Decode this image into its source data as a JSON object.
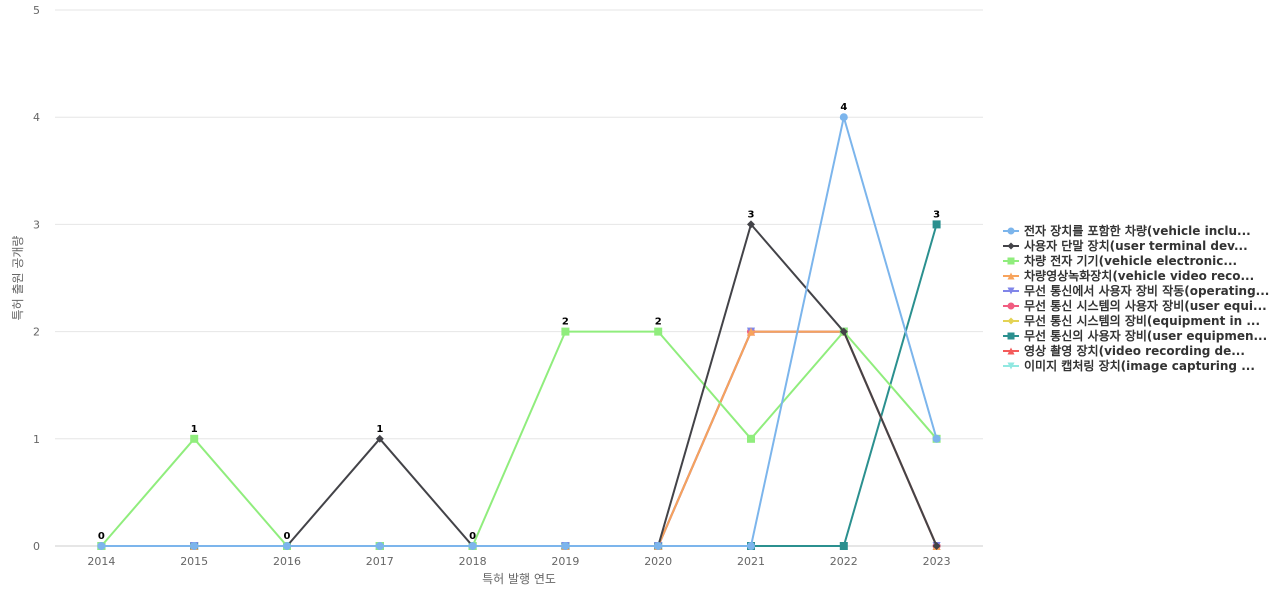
{
  "chart_data": {
    "type": "line",
    "title": "",
    "xlabel": "특허 발행 연도",
    "ylabel": "특허 출원 공개량",
    "ylim": [
      0,
      5
    ],
    "yticks": [
      "0",
      "1",
      "2",
      "3",
      "4",
      "5"
    ],
    "grid": true,
    "legend_position": "right",
    "categories": [
      "2014",
      "2015",
      "2016",
      "2017",
      "2018",
      "2019",
      "2020",
      "2021",
      "2022",
      "2023"
    ],
    "series": [
      {
        "name": "전자 장치를 포함한 차량(vehicle inclu...",
        "color": "#7cb5ec",
        "marker": "circle",
        "values": [
          0,
          0,
          0,
          0,
          0,
          0,
          0,
          0,
          4,
          1
        ]
      },
      {
        "name": "사용자 단말 장치(user terminal dev...",
        "color": "#434348",
        "marker": "diamond",
        "values": [
          0,
          0,
          0,
          1,
          0,
          0,
          0,
          3,
          2,
          0
        ]
      },
      {
        "name": "차량 전자 기기(vehicle electronic...",
        "color": "#90ed7d",
        "marker": "square",
        "values": [
          0,
          1,
          0,
          0,
          0,
          2,
          2,
          1,
          2,
          1
        ]
      },
      {
        "name": "차량영상녹화장치(vehicle video reco...",
        "color": "#f7a35c",
        "marker": "triangle",
        "values": [
          0,
          0,
          0,
          0,
          0,
          0,
          0,
          2,
          2,
          0
        ]
      },
      {
        "name": "무선 통신에서 사용자 장비 작동(operating...",
        "color": "#8085e9",
        "marker": "triangle-down",
        "values": [
          0,
          0,
          0,
          0,
          0,
          0,
          0,
          2,
          2,
          0
        ]
      },
      {
        "name": "무선 통신 시스템의 사용자 장비(user equi...",
        "color": "#f15c80",
        "marker": "circle",
        "values": [
          0,
          0,
          0,
          0,
          0,
          0,
          0,
          2,
          2,
          0
        ]
      },
      {
        "name": "무선 통신 시스템의 장비(equipment in ...",
        "color": "#e4d354",
        "marker": "diamond",
        "values": [
          0,
          0,
          0,
          0,
          0,
          0,
          0,
          2,
          2,
          0
        ]
      },
      {
        "name": "무선 통신의 사용자 장비(user equipmen...",
        "color": "#2b908f",
        "marker": "square",
        "values": [
          0,
          0,
          0,
          0,
          0,
          0,
          0,
          0,
          0,
          3
        ]
      },
      {
        "name": "영상 촬영 장치(video recording de...",
        "color": "#f45b5b",
        "marker": "triangle",
        "values": [
          0,
          0,
          0,
          0,
          0,
          0,
          0,
          2,
          2,
          0
        ]
      },
      {
        "name": "이미지 캡처링 장치(image capturing ...",
        "color": "#91e8e1",
        "marker": "triangle-down",
        "values": [
          0,
          0,
          0,
          0,
          0,
          0,
          0,
          2,
          2,
          0
        ]
      }
    ],
    "data_labels": [
      "0",
      "1",
      "0",
      "1",
      "0",
      "2",
      "2",
      "3",
      "4",
      "3"
    ]
  }
}
